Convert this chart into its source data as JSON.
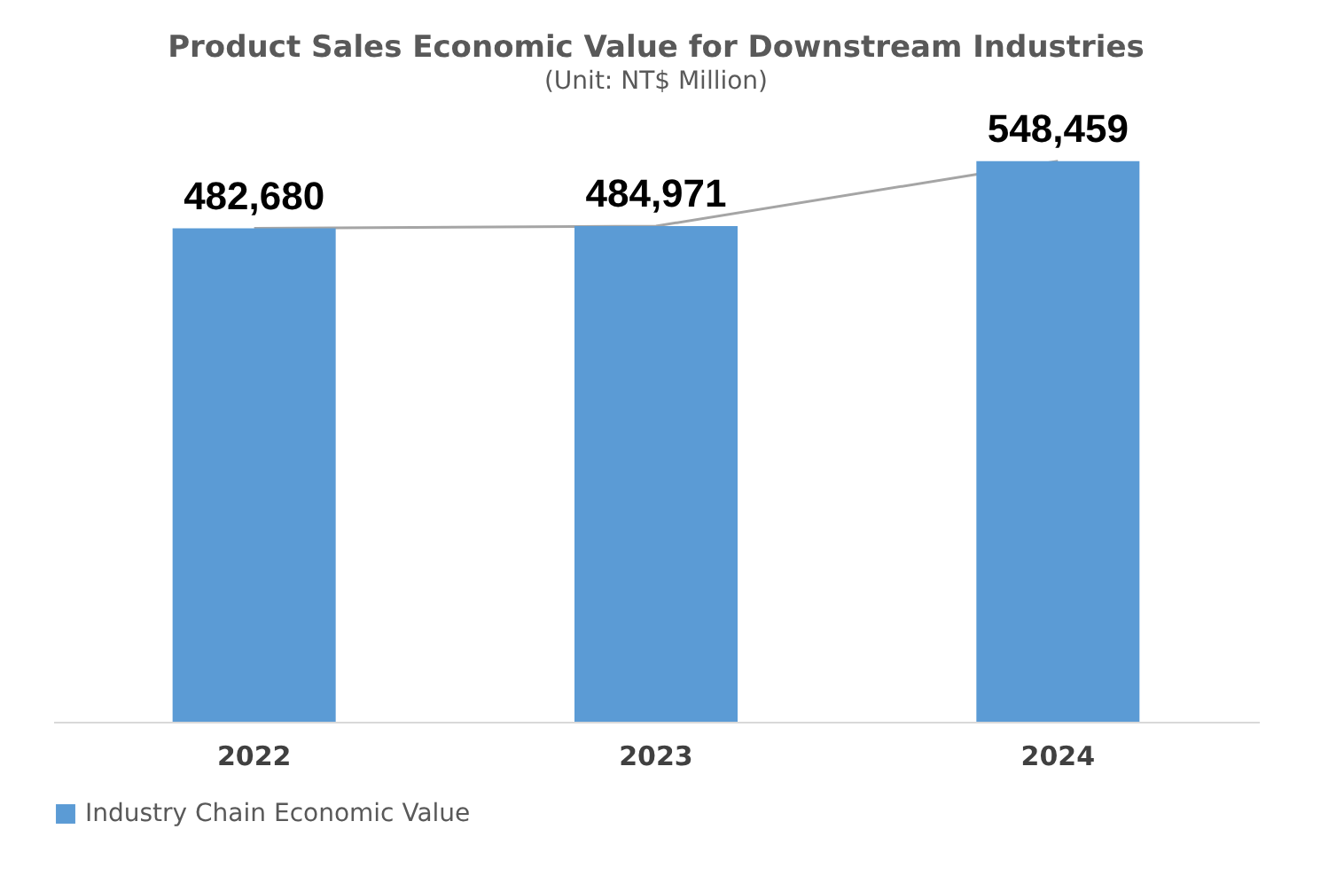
{
  "chart_data": {
    "type": "bar",
    "title": "Product Sales Economic Value for Downstream Industries",
    "subtitle": "(Unit: NT$ Million)",
    "categories": [
      "2022",
      "2023",
      "2024"
    ],
    "series": [
      {
        "name": "Industry Chain Economic Value",
        "color": "#5b9bd5",
        "values": [
          482680,
          484971,
          548459
        ],
        "value_labels": [
          "482,680",
          "484,971",
          "548,459"
        ]
      },
      {
        "type": "line",
        "color": "#a5a5a5",
        "values": [
          482680,
          484971,
          548459
        ]
      }
    ],
    "legend": "bottom",
    "grid": false,
    "tick_labels": "x"
  }
}
